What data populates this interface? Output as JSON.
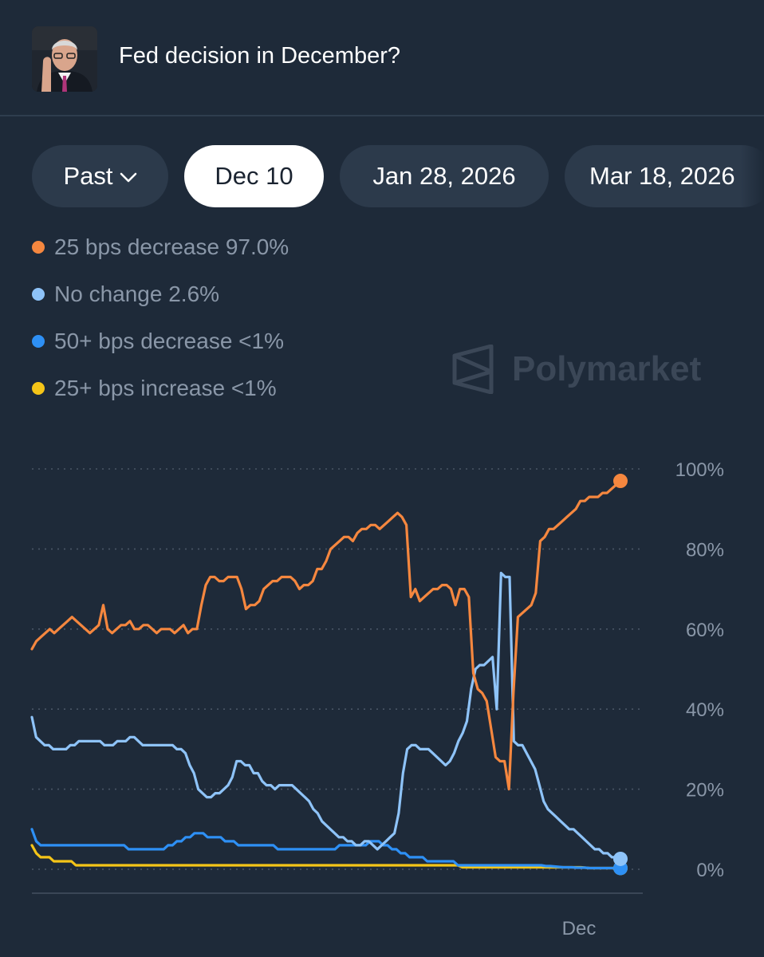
{
  "header": {
    "title": "Fed decision in December?",
    "avatar_icon": "person-photo-icon"
  },
  "tabs": [
    {
      "label": "Past",
      "active": false,
      "dropdown": true
    },
    {
      "label": "Dec 10",
      "active": true
    },
    {
      "label": "Jan 28, 2026",
      "active": false
    },
    {
      "label": "Mar 18, 2026",
      "active": false
    }
  ],
  "legend": [
    {
      "label": "25 bps decrease 97.0%",
      "color": "#f5873f"
    },
    {
      "label": "No change 2.6%",
      "color": "#8ec3f8"
    },
    {
      "label": "50+ bps decrease <1%",
      "color": "#2e90f5"
    },
    {
      "label": "25+ bps increase <1%",
      "color": "#f5c518"
    }
  ],
  "watermark": {
    "text": "Polymarket",
    "icon": "polymarket-logo-icon"
  },
  "chart_data": {
    "type": "line",
    "x_tick_labels": [
      "Dec"
    ],
    "y_tick_labels": [
      "100%",
      "80%",
      "60%",
      "40%",
      "20%",
      "0%"
    ],
    "ylim": [
      0,
      100
    ],
    "grid": true,
    "series": [
      {
        "name": "25 bps decrease",
        "color": "#f5873f",
        "values": [
          55,
          57,
          58,
          59,
          60,
          59,
          60,
          61,
          62,
          63,
          62,
          61,
          60,
          59,
          60,
          61,
          66,
          60,
          59,
          60,
          61,
          61,
          62,
          60,
          60,
          61,
          61,
          60,
          59,
          60,
          60,
          60,
          59,
          60,
          61,
          59,
          60,
          60,
          66,
          71,
          73,
          73,
          72,
          72,
          73,
          73,
          73,
          70,
          65,
          66,
          66,
          67,
          70,
          71,
          72,
          72,
          73,
          73,
          73,
          72,
          70,
          71,
          71,
          72,
          75,
          75,
          77,
          80,
          81,
          82,
          83,
          83,
          82,
          84,
          85,
          85,
          86,
          86,
          85,
          86,
          87,
          88,
          89,
          88,
          86,
          68,
          70,
          67,
          68,
          69,
          70,
          70,
          71,
          71,
          70,
          66,
          70,
          70,
          68,
          49,
          45,
          44,
          42,
          35,
          28,
          27,
          27,
          20,
          44,
          63,
          64,
          65,
          66,
          69,
          82,
          83,
          85,
          85,
          86,
          87,
          88,
          89,
          90,
          92,
          92,
          93,
          93,
          93,
          94,
          94,
          95,
          96,
          97
        ]
      },
      {
        "name": "No change",
        "color": "#8ec3f8",
        "values": [
          38,
          33,
          32,
          31,
          31,
          30,
          30,
          30,
          30,
          31,
          31,
          32,
          32,
          32,
          32,
          32,
          32,
          31,
          31,
          31,
          32,
          32,
          32,
          33,
          33,
          32,
          31,
          31,
          31,
          31,
          31,
          31,
          31,
          31,
          30,
          30,
          29,
          26,
          24,
          20,
          19,
          18,
          18,
          19,
          19,
          20,
          21,
          23,
          27,
          27,
          26,
          26,
          24,
          24,
          22,
          21,
          21,
          20,
          21,
          21,
          21,
          21,
          20,
          19,
          18,
          17,
          15,
          14,
          12,
          11,
          10,
          9,
          8,
          8,
          7,
          7,
          6,
          6,
          7,
          7,
          6,
          5,
          6,
          7,
          8,
          9,
          14,
          24,
          30,
          31,
          31,
          30,
          30,
          30,
          29,
          28,
          27,
          26,
          27,
          29,
          32,
          34,
          37,
          45,
          50,
          51,
          51,
          52,
          53,
          40,
          74,
          73,
          73,
          32,
          31,
          31,
          29,
          27,
          25,
          21,
          17,
          15,
          14,
          13,
          12,
          11,
          10,
          10,
          9,
          8,
          7,
          6,
          5,
          5,
          4,
          4,
          3,
          3,
          2.6
        ]
      },
      {
        "name": "50+ bps decrease",
        "color": "#2e90f5",
        "values": [
          10,
          7,
          6,
          6,
          6,
          6,
          6,
          6,
          6,
          6,
          6,
          6,
          6,
          6,
          6,
          6,
          6,
          6,
          6,
          6,
          6,
          6,
          5,
          5,
          5,
          5,
          5,
          5,
          5,
          5,
          5,
          6,
          6,
          7,
          7,
          8,
          8,
          9,
          9,
          9,
          8,
          8,
          8,
          8,
          7,
          7,
          7,
          6,
          6,
          6,
          6,
          6,
          6,
          6,
          6,
          6,
          5,
          5,
          5,
          5,
          5,
          5,
          5,
          5,
          5,
          5,
          5,
          5,
          5,
          5,
          6,
          6,
          6,
          6,
          6,
          6,
          6,
          7,
          7,
          7,
          6,
          6,
          5,
          5,
          4,
          4,
          3,
          3,
          3,
          3,
          2,
          2,
          2,
          2,
          2,
          2,
          2,
          1,
          1,
          1,
          1,
          1,
          1,
          1,
          1,
          1,
          1,
          1,
          1,
          1,
          1,
          1,
          1,
          1,
          1,
          1,
          1,
          0.8,
          0.8,
          0.7,
          0.6,
          0.5,
          0.5,
          0.5,
          0.4,
          0.4,
          0.4,
          0.3,
          0.3,
          0.3,
          0.3,
          0.3,
          0.3,
          0.3,
          0.3
        ]
      },
      {
        "name": "25+ bps increase",
        "color": "#f5c518",
        "values": [
          6,
          4,
          3,
          3,
          3,
          2,
          2,
          2,
          2,
          2,
          1,
          1,
          1,
          1,
          1,
          1,
          1,
          1,
          1,
          1,
          1,
          1,
          1,
          1,
          1,
          1,
          1,
          1,
          1,
          1,
          1,
          1,
          1,
          1,
          1,
          1,
          1,
          1,
          1,
          1,
          1,
          1,
          1,
          1,
          1,
          1,
          1,
          1,
          1,
          1,
          1,
          1,
          1,
          1,
          1,
          1,
          1,
          1,
          1,
          1,
          1,
          1,
          1,
          1,
          1,
          1,
          1,
          1,
          1,
          1,
          1,
          1,
          1,
          1,
          1,
          1,
          1,
          1,
          1,
          1,
          1,
          1,
          1,
          1,
          1,
          1,
          1,
          1,
          1,
          1,
          1,
          1,
          1,
          1,
          1,
          1,
          1,
          1,
          0.5,
          0.5,
          0.5,
          0.5,
          0.5,
          0.5,
          0.5,
          0.5,
          0.5,
          0.5,
          0.5,
          0.5,
          0.5,
          0.5,
          0.5,
          0.5,
          0.5,
          0.5,
          0.5,
          0.5,
          0.5,
          0.5,
          0.5,
          0.5,
          0.5,
          0.5,
          0.5,
          0.5,
          0.4,
          0.3,
          0.3,
          0.3,
          0.3,
          0.3,
          0.3,
          0.3,
          0.3
        ]
      }
    ]
  }
}
